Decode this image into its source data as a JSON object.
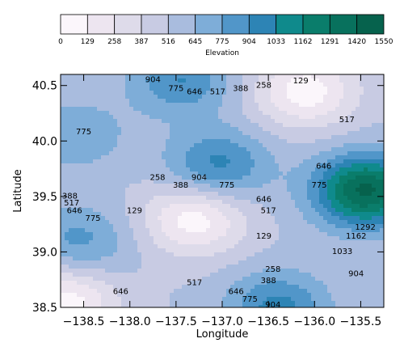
{
  "chart_data": {
    "type": "heatmap",
    "subtype": "filled-contour",
    "xlabel": "Longitude",
    "ylabel": "Latitude",
    "xlim": [
      -138.75,
      -135.25
    ],
    "ylim": [
      38.5,
      40.6
    ],
    "x_ticks": [
      "−138.5",
      "−138.0",
      "−137.5",
      "−137.0",
      "−136.5",
      "−136.0",
      "−135.5"
    ],
    "x_tick_values": [
      -138.5,
      -138.0,
      -137.5,
      -137.0,
      -136.5,
      -136.0,
      -135.5
    ],
    "y_ticks": [
      "38.5",
      "39.0",
      "39.5",
      "40.0",
      "40.5"
    ],
    "y_tick_values": [
      38.5,
      39.0,
      39.5,
      40.0,
      40.5
    ],
    "colorbar": {
      "label": "Elevation",
      "levels": [
        0,
        129,
        258,
        387,
        516,
        645,
        775,
        904,
        1033,
        1162,
        1291,
        1420,
        1550
      ],
      "level_labels": [
        "0",
        "129",
        "258",
        "387",
        "516",
        "645",
        "775",
        "904",
        "1033",
        "1162",
        "1291",
        "1420",
        "1550"
      ],
      "colors": [
        "#fbf6fb",
        "#ede5f0",
        "#dedbea",
        "#c8cbe3",
        "#a9bcde",
        "#7eadd8",
        "#5196c9",
        "#2d84b5",
        "#0f8a8c",
        "#0a7d6b",
        "#08715d",
        "#06624d"
      ]
    },
    "features": [
      {
        "kind": "high",
        "lon": -135.45,
        "lat": 39.55,
        "value": 1550
      },
      {
        "kind": "high",
        "lon": -137.05,
        "lat": 39.78,
        "value": 1000
      },
      {
        "kind": "high",
        "lon": -138.55,
        "lat": 39.1,
        "value": 850
      },
      {
        "kind": "high",
        "lon": -137.45,
        "lat": 40.55,
        "value": 950
      },
      {
        "kind": "high",
        "lon": -138.6,
        "lat": 40.05,
        "value": 790
      },
      {
        "kind": "high",
        "lon": -136.4,
        "lat": 38.5,
        "value": 1000
      },
      {
        "kind": "low",
        "lon": -137.3,
        "lat": 39.3,
        "value": 0
      },
      {
        "kind": "low",
        "lon": -136.1,
        "lat": 40.45,
        "value": 0
      },
      {
        "kind": "low",
        "lon": -138.7,
        "lat": 38.55,
        "value": 0
      }
    ],
    "contour_labels": [
      {
        "text": "904",
        "lon": -137.75,
        "lat": 40.53
      },
      {
        "text": "775",
        "lon": -137.5,
        "lat": 40.45
      },
      {
        "text": "646",
        "lon": -137.3,
        "lat": 40.42
      },
      {
        "text": "517",
        "lon": -137.05,
        "lat": 40.42
      },
      {
        "text": "388",
        "lon": -136.8,
        "lat": 40.45
      },
      {
        "text": "258",
        "lon": -136.55,
        "lat": 40.48
      },
      {
        "text": "129",
        "lon": -136.15,
        "lat": 40.52
      },
      {
        "text": "517",
        "lon": -135.65,
        "lat": 40.17
      },
      {
        "text": "775",
        "lon": -138.5,
        "lat": 40.06
      },
      {
        "text": "904",
        "lon": -137.25,
        "lat": 39.65
      },
      {
        "text": "775",
        "lon": -136.95,
        "lat": 39.58
      },
      {
        "text": "646",
        "lon": -135.9,
        "lat": 39.75
      },
      {
        "text": "775",
        "lon": -135.95,
        "lat": 39.58
      },
      {
        "text": "258",
        "lon": -137.7,
        "lat": 39.65
      },
      {
        "text": "388",
        "lon": -137.45,
        "lat": 39.58
      },
      {
        "text": "646",
        "lon": -136.55,
        "lat": 39.45
      },
      {
        "text": "517",
        "lon": -136.5,
        "lat": 39.35
      },
      {
        "text": "129",
        "lon": -137.95,
        "lat": 39.35
      },
      {
        "text": "129",
        "lon": -136.55,
        "lat": 39.12
      },
      {
        "text": "258",
        "lon": -136.45,
        "lat": 38.82
      },
      {
        "text": "388",
        "lon": -136.5,
        "lat": 38.72
      },
      {
        "text": "517",
        "lon": -137.3,
        "lat": 38.7
      },
      {
        "text": "646",
        "lon": -136.85,
        "lat": 38.62
      },
      {
        "text": "775",
        "lon": -136.7,
        "lat": 38.55
      },
      {
        "text": "904",
        "lon": -136.45,
        "lat": 38.5
      },
      {
        "text": "388",
        "lon": -138.65,
        "lat": 39.48
      },
      {
        "text": "517",
        "lon": -138.63,
        "lat": 39.42
      },
      {
        "text": "646",
        "lon": -138.6,
        "lat": 39.35
      },
      {
        "text": "775",
        "lon": -138.4,
        "lat": 39.28
      },
      {
        "text": "646",
        "lon": -138.1,
        "lat": 38.62
      },
      {
        "text": "1292",
        "lon": -135.45,
        "lat": 39.2
      },
      {
        "text": "1162",
        "lon": -135.55,
        "lat": 39.12
      },
      {
        "text": "1033",
        "lon": -135.7,
        "lat": 38.98
      },
      {
        "text": "904",
        "lon": -135.55,
        "lat": 38.78
      }
    ]
  }
}
